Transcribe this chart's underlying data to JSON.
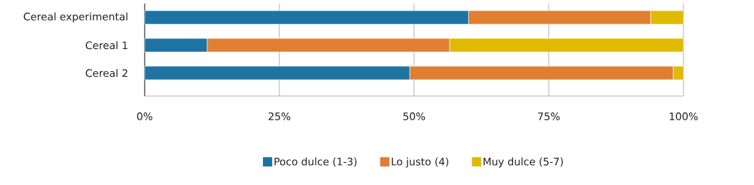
{
  "chart_data": {
    "type": "bar",
    "orientation": "horizontal",
    "stacked": true,
    "categories": [
      "Cereal experimental",
      "Cereal 1",
      "Cereal 2"
    ],
    "series": [
      {
        "name": "Poco dulce (1-3)",
        "color": "#1f73a3",
        "values": [
          60.1,
          11.6,
          49.2
        ]
      },
      {
        "name": "Lo justo (4)",
        "color": "#e07f32",
        "values": [
          33.8,
          45.0,
          48.9
        ]
      },
      {
        "name": "Muy dulce (5-7)",
        "color": "#dfba00",
        "values": [
          6.1,
          43.4,
          1.9
        ]
      }
    ],
    "xlim": [
      0,
      100
    ],
    "xticks": [
      {
        "value": 0,
        "label": "0%"
      },
      {
        "value": 25,
        "label": "25%"
      },
      {
        "value": 50,
        "label": "50%"
      },
      {
        "value": 75,
        "label": "75%"
      },
      {
        "value": 100,
        "label": "100%"
      }
    ],
    "grid": "x",
    "legend": "bottom"
  }
}
